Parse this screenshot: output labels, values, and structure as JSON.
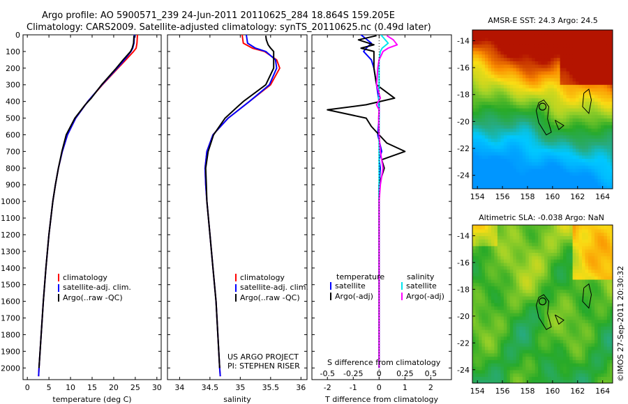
{
  "header": {
    "line1": "Argo profile: AO 5900571_239 24-Jun-2011 20110625_284 18.864S 159.205E",
    "line2": "Climatology: CARS2009. Satellite-adjusted climatology: synTS_20110625.nc (0.49d later)"
  },
  "credit": "US ARGO PROJECT",
  "pi": "PI: STEPHEN RISER",
  "timestamp": "©IMOS 27-Sep-2011 20:30:32",
  "colors": {
    "red": "#ff0000",
    "blue": "#0000ff",
    "black": "#000000",
    "cyan": "#00e5ee",
    "magenta": "#ff00ff"
  },
  "chart_data": [
    {
      "id": "temperature",
      "type": "line",
      "xlabel": "temperature (deg C)",
      "ylabel": "",
      "xlim": [
        -1,
        31
      ],
      "ylim": [
        2070,
        0
      ],
      "xticks": [
        0,
        5,
        10,
        15,
        20,
        25,
        30
      ],
      "yticks": [
        0,
        100,
        200,
        300,
        400,
        500,
        600,
        700,
        800,
        900,
        1000,
        1100,
        1200,
        1300,
        1400,
        1500,
        1600,
        1700,
        1800,
        1900,
        2000
      ],
      "legend": [
        "climatology",
        "satellite-adj. clim.",
        "Argo(..raw -QC)"
      ],
      "series": [
        {
          "name": "climatology",
          "color": "#ff0000",
          "depth": [
            0,
            50,
            80,
            100,
            150,
            200,
            300,
            400,
            500,
            600,
            700,
            800,
            900,
            1000,
            1200,
            1400,
            1600,
            1800,
            2000,
            2050
          ],
          "values": [
            25.5,
            25.4,
            25.2,
            24.6,
            22.8,
            21.0,
            17.4,
            14.0,
            11.2,
            9.3,
            8.1,
            7.2,
            6.5,
            5.9,
            5.0,
            4.3,
            3.7,
            3.2,
            2.7,
            2.6
          ]
        },
        {
          "name": "satellite-adj. clim.",
          "color": "#0000ff",
          "depth": [
            0,
            50,
            80,
            100,
            150,
            200,
            300,
            400,
            500,
            600,
            700,
            800,
            900,
            1000,
            1200,
            1400,
            1600,
            1800,
            2000,
            2050
          ],
          "values": [
            24.8,
            24.7,
            24.4,
            24.0,
            22.5,
            20.8,
            17.3,
            14.0,
            11.2,
            9.3,
            8.1,
            7.2,
            6.5,
            5.9,
            5.0,
            4.3,
            3.7,
            3.2,
            2.7,
            2.6
          ]
        },
        {
          "name": "Argo(..raw -QC)",
          "color": "#000000",
          "depth": [
            5,
            50,
            80,
            100,
            150,
            200,
            300,
            380,
            420,
            500,
            600,
            700,
            800,
            900,
            1000,
            1200,
            1400,
            1600,
            1800,
            2000
          ],
          "values": [
            24.7,
            24.6,
            24.3,
            23.9,
            22.2,
            20.6,
            17.2,
            14.8,
            13.4,
            11.0,
            9.0,
            8.0,
            7.2,
            6.5,
            5.9,
            5.0,
            4.3,
            3.7,
            3.2,
            2.7
          ]
        }
      ]
    },
    {
      "id": "salinity",
      "type": "line",
      "xlabel": "salinity",
      "ylabel": "",
      "xlim": [
        33.8,
        36.1
      ],
      "ylim": [
        2070,
        0
      ],
      "xticks": [
        34,
        34.5,
        35,
        35.5,
        36
      ],
      "legend": [
        "climatology",
        "satellite-adj. clim.",
        "Argo(..raw -QC)"
      ],
      "series": [
        {
          "name": "climatology",
          "color": "#ff0000",
          "depth": [
            0,
            50,
            80,
            100,
            150,
            200,
            300,
            400,
            500,
            600,
            700,
            800,
            900,
            1000,
            1200,
            1400,
            1600,
            1800,
            2000,
            2050
          ],
          "values": [
            35.03,
            35.05,
            35.2,
            35.4,
            35.6,
            35.65,
            35.5,
            35.15,
            34.8,
            34.55,
            34.45,
            34.42,
            34.43,
            34.45,
            34.5,
            34.55,
            34.6,
            34.63,
            34.66,
            34.67
          ]
        },
        {
          "name": "satellite-adj. clim.",
          "color": "#0000ff",
          "depth": [
            0,
            50,
            80,
            100,
            150,
            200,
            300,
            400,
            500,
            600,
            700,
            800,
            900,
            1000,
            1200,
            1400,
            1600,
            1800,
            2000,
            2050
          ],
          "values": [
            35.1,
            35.12,
            35.25,
            35.42,
            35.58,
            35.6,
            35.48,
            35.15,
            34.8,
            34.55,
            34.45,
            34.42,
            34.43,
            34.45,
            34.5,
            34.55,
            34.6,
            34.63,
            34.66,
            34.67
          ]
        },
        {
          "name": "Argo(..raw -QC)",
          "color": "#000000",
          "depth": [
            5,
            30,
            60,
            80,
            100,
            150,
            200,
            300,
            400,
            430,
            500,
            600,
            700,
            800,
            900,
            1000,
            1200,
            1400,
            1600,
            1800,
            2000
          ],
          "values": [
            35.42,
            35.43,
            35.46,
            35.5,
            35.55,
            35.55,
            35.55,
            35.42,
            35.05,
            34.96,
            34.75,
            34.56,
            34.47,
            34.43,
            34.44,
            34.45,
            34.5,
            34.55,
            34.6,
            34.63,
            34.66
          ]
        }
      ]
    },
    {
      "id": "difference",
      "type": "line",
      "xlabel": "T difference from climatology",
      "ylabel": "",
      "top_label": "S difference from climatology",
      "xlim": [
        -2.6,
        2.8
      ],
      "ylim": [
        2070,
        0
      ],
      "xticks": [
        -2,
        -1,
        0,
        1,
        2
      ],
      "sticks": [
        -0.5,
        -0.25,
        0,
        0.25,
        0.5
      ],
      "legend_left_title": "temperature",
      "legend_right_title": "salinity",
      "legend": [
        "satellite",
        "Argo(-adj)",
        "satellite",
        "Argo(-adj)"
      ],
      "series": [
        {
          "name": "satellite",
          "quantity": "temperature",
          "color": "#0000ff",
          "depth": [
            0,
            50,
            80,
            100,
            150,
            200,
            300,
            400,
            500,
            600,
            700,
            750,
            800,
            900,
            1000,
            1500,
            2000
          ],
          "values": [
            -0.7,
            -0.3,
            -0.5,
            -0.6,
            -0.3,
            -0.2,
            -0.1,
            0.0,
            0.0,
            -0.05,
            0.1,
            0.0,
            0.05,
            0.0,
            0.0,
            0.0,
            0.0
          ]
        },
        {
          "name": "Argo(-adj)",
          "quantity": "temperature",
          "color": "#000000",
          "depth": [
            5,
            30,
            60,
            80,
            100,
            150,
            200,
            300,
            380,
            420,
            450,
            500,
            550,
            600,
            650,
            700,
            750,
            800,
            900,
            1000,
            1500,
            2000
          ],
          "values": [
            -0.1,
            -0.8,
            -0.2,
            -0.7,
            -0.2,
            -0.2,
            -0.2,
            -0.1,
            0.6,
            -0.5,
            -2.0,
            -0.5,
            -0.3,
            0.0,
            0.3,
            1.0,
            0.1,
            0.2,
            0.0,
            0.0,
            0.0,
            0.0
          ]
        },
        {
          "name": "satellite",
          "quantity": "salinity",
          "color": "#00e5ee",
          "depth": [
            0,
            50,
            80,
            100,
            150,
            200,
            300,
            400,
            500,
            600,
            1000,
            2000
          ],
          "values": [
            0.07,
            0.35,
            0.12,
            0.05,
            0.0,
            0.0,
            0.0,
            -0.02,
            0.0,
            0.0,
            0.0,
            0.0
          ]
        },
        {
          "name": "Argo(-adj)",
          "quantity": "salinity",
          "color": "#ff00ff",
          "depth": [
            5,
            30,
            60,
            80,
            100,
            150,
            200,
            300,
            380,
            420,
            450,
            500,
            600,
            700,
            800,
            900,
            1000,
            2000
          ],
          "values": [
            0.3,
            0.55,
            0.7,
            0.35,
            0.15,
            0.0,
            -0.05,
            -0.1,
            0.05,
            -0.1,
            0.0,
            -0.02,
            0.0,
            0.05,
            0.15,
            0.05,
            0.0,
            0.0
          ]
        }
      ]
    },
    {
      "id": "sst_map",
      "type": "heatmap",
      "title": "AMSR-E SST: 24.3 Argo: 24.5",
      "xlim": [
        153.6,
        164.8
      ],
      "ylim": [
        -25.0,
        -13.2
      ],
      "xticks": [
        154,
        156,
        158,
        160,
        162,
        164
      ],
      "yticks": [
        -14,
        -16,
        -18,
        -20,
        -22,
        -24
      ],
      "float_position": [
        159.2,
        -18.9
      ]
    },
    {
      "id": "sla_map",
      "type": "heatmap",
      "title": "Altimetric SLA: -0.038 Argo: NaN",
      "xlim": [
        153.6,
        164.8
      ],
      "ylim": [
        -25.0,
        -13.2
      ],
      "xticks": [
        154,
        156,
        158,
        160,
        162,
        164
      ],
      "yticks": [
        -14,
        -16,
        -18,
        -20,
        -22,
        -24
      ],
      "float_position": [
        159.2,
        -18.9
      ]
    }
  ]
}
